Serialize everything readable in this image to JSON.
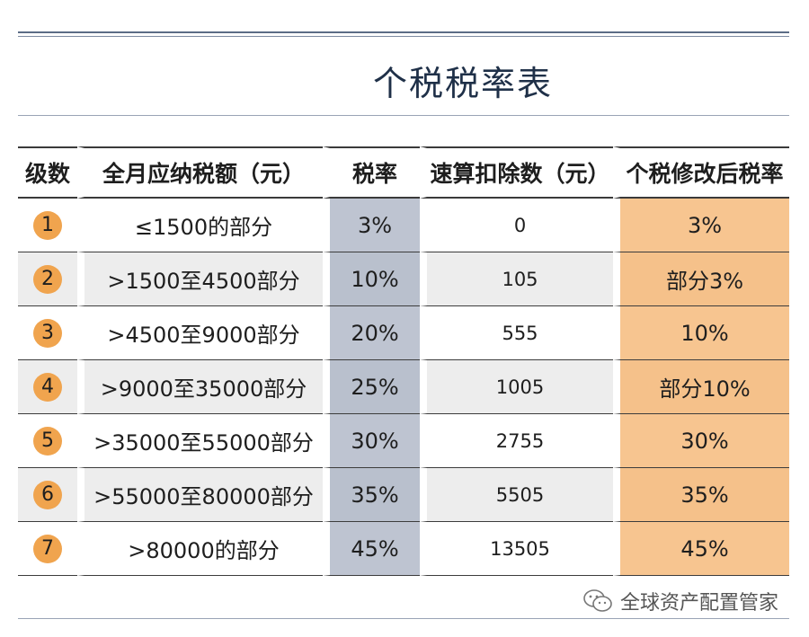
{
  "title": "个税税率表",
  "headers": {
    "level": "级数",
    "income": "全月应纳税额（元）",
    "rate": "税率",
    "deduction": "速算扣除数（元）",
    "new_rate": "个税修改后税率"
  },
  "rows": [
    {
      "level": "1",
      "income": "≤1500的部分",
      "rate": "3%",
      "deduction": "0",
      "new_rate": "3%"
    },
    {
      "level": "2",
      "income": ">1500至4500部分",
      "rate": "10%",
      "deduction": "105",
      "new_rate": "部分3%"
    },
    {
      "level": "3",
      "income": ">4500至9000部分",
      "rate": "20%",
      "deduction": "555",
      "new_rate": "10%"
    },
    {
      "level": "4",
      "income": ">9000至35000部分",
      "rate": "25%",
      "deduction": "1005",
      "new_rate": "部分10%"
    },
    {
      "level": "5",
      "income": ">35000至55000部分",
      "rate": "30%",
      "deduction": "2755",
      "new_rate": "30%"
    },
    {
      "level": "6",
      "income": ">55000至80000部分",
      "rate": "35%",
      "deduction": "5505",
      "new_rate": "35%"
    },
    {
      "level": "7",
      "income": ">80000的部分",
      "rate": "45%",
      "deduction": "13505",
      "new_rate": "45%"
    }
  ],
  "watermark": {
    "icon": "wechat-icon",
    "text": "全球资产配置管家"
  },
  "colors": {
    "badge": "#f0a44e",
    "rate_column": "#bec4d1",
    "new_rate_column": "#f7c590",
    "title": "#1f3048"
  }
}
